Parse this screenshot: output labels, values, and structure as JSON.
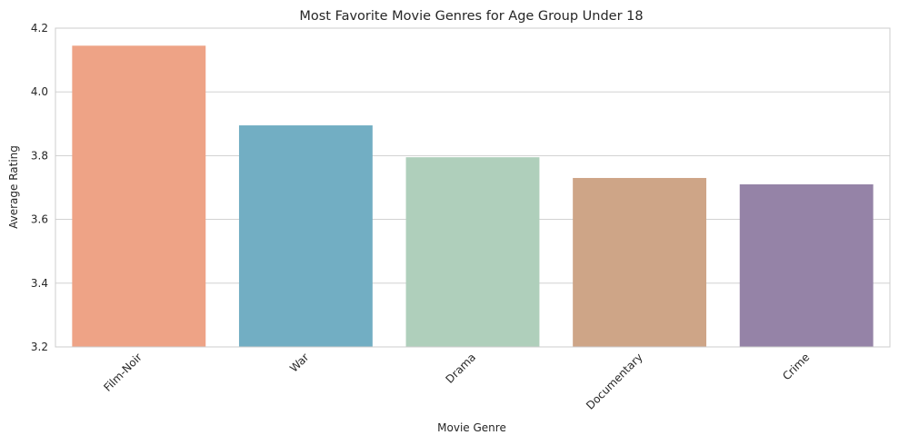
{
  "chart_data": {
    "type": "bar",
    "title": "Most Favorite Movie Genres for Age Group Under 18",
    "xlabel": "Movie Genre",
    "ylabel": "Average Rating",
    "categories": [
      "Film-Noir",
      "War",
      "Drama",
      "Documentary",
      "Crime"
    ],
    "values": [
      4.145,
      3.895,
      3.795,
      3.73,
      3.71
    ],
    "colors": [
      "#eea386",
      "#72aec3",
      "#afcfbb",
      "#cea587",
      "#9583a7"
    ],
    "ylim": [
      3.2,
      4.2
    ],
    "yticks": [
      "3.2",
      "3.4",
      "3.6",
      "3.8",
      "4.0",
      "4.2"
    ],
    "grid": true,
    "legend": "none"
  }
}
